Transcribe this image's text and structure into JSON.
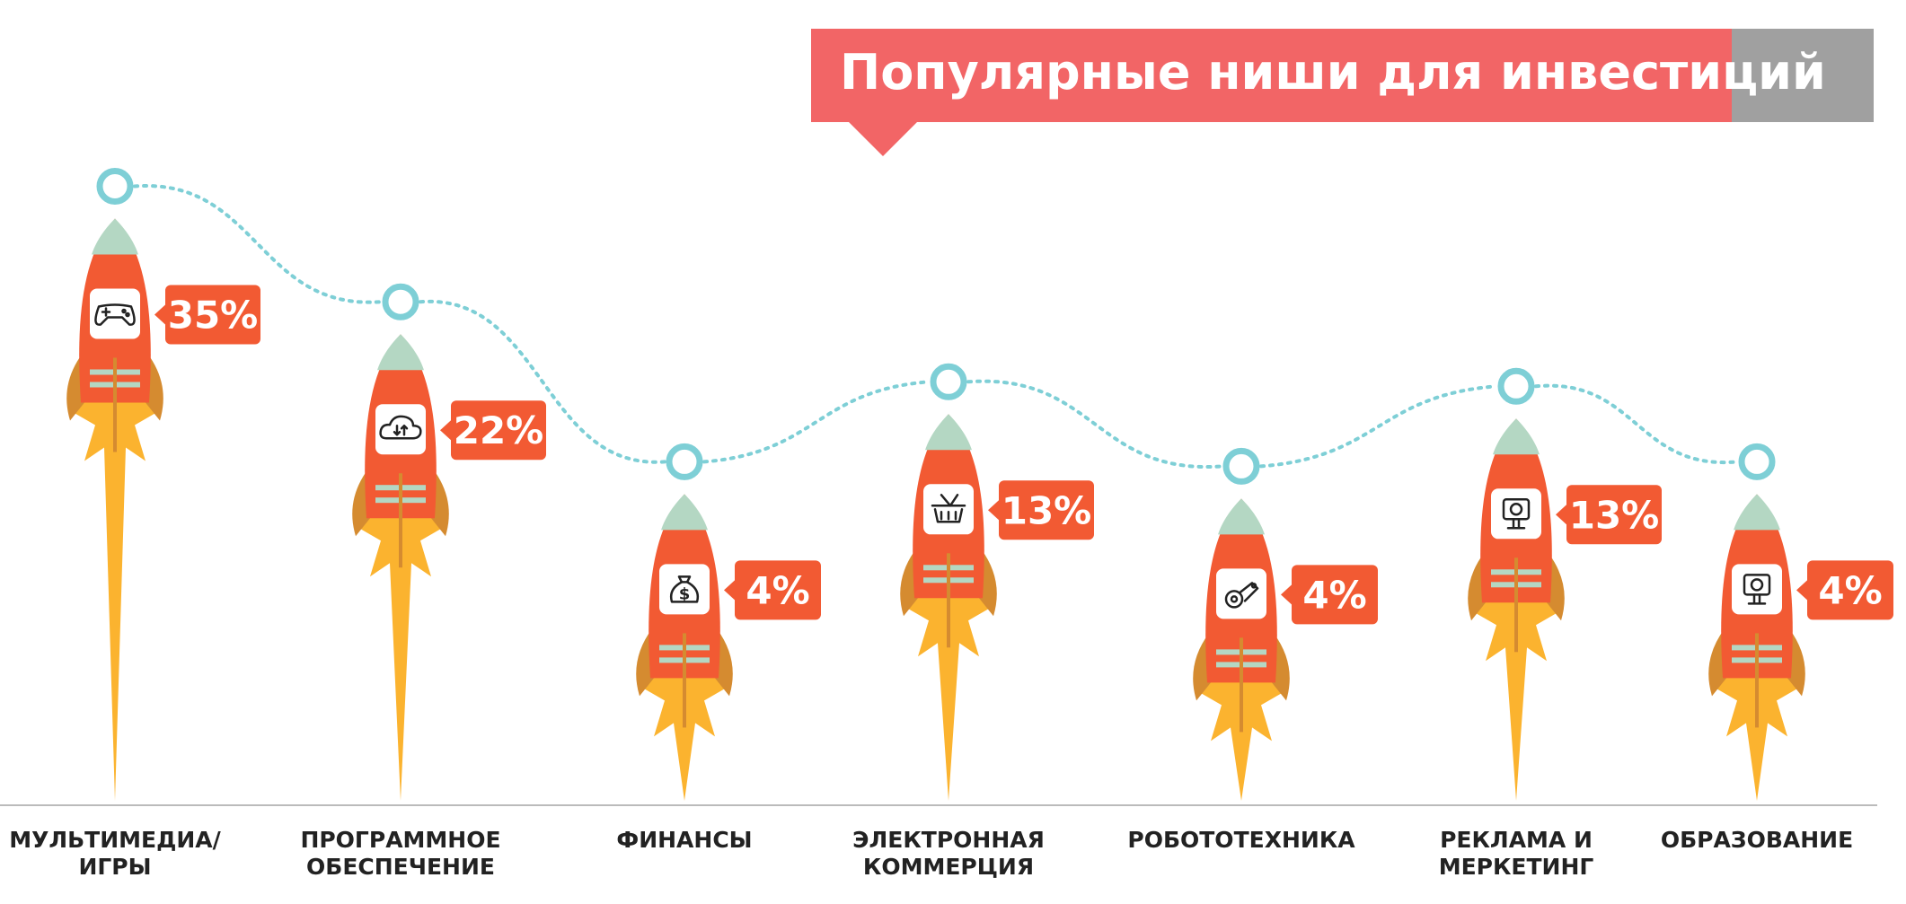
{
  "colors": {
    "title_bg": "#F26566",
    "title_tab": "#A0A0A0",
    "rocket_body": "#F25A33",
    "rocket_nose": "#B4D7C3",
    "rocket_fins": "#D58B30",
    "flame": "#FBB32F",
    "badge": "#F25A33",
    "path_line": "#7ECFD6",
    "axis": "#BBBBBB",
    "label_text": "#222222"
  },
  "chart_data": {
    "type": "bar",
    "title": "Популярные ниши для инвестиций",
    "categories": [
      [
        "МУЛЬТИМЕДИА/",
        "ИГРЫ"
      ],
      [
        "ПРОГРАММНОЕ",
        "ОБЕСПЕЧЕНИЕ"
      ],
      [
        "ФИНАНСЫ"
      ],
      [
        "ЭЛЕКТРОННАЯ",
        "КОММЕРЦИЯ"
      ],
      [
        "РОБОТОТЕХНИКА"
      ],
      [
        "РЕКЛАМА И",
        "МЕРКЕТИНГ"
      ],
      [
        "ОБРАЗОВАНИЕ"
      ]
    ],
    "values": [
      35,
      22,
      4,
      13,
      4,
      13,
      4
    ],
    "value_labels": [
      "35%",
      "22%",
      "4%",
      "13%",
      "4%",
      "13%",
      "4%"
    ],
    "icons": [
      "gamepad-icon",
      "cloud-sync-icon",
      "money-bag-icon",
      "basket-icon",
      "robot-arm-icon",
      "billboard-icon",
      "billboard-icon"
    ],
    "xlabel": "",
    "ylabel": "",
    "grid": false,
    "legend": false
  }
}
